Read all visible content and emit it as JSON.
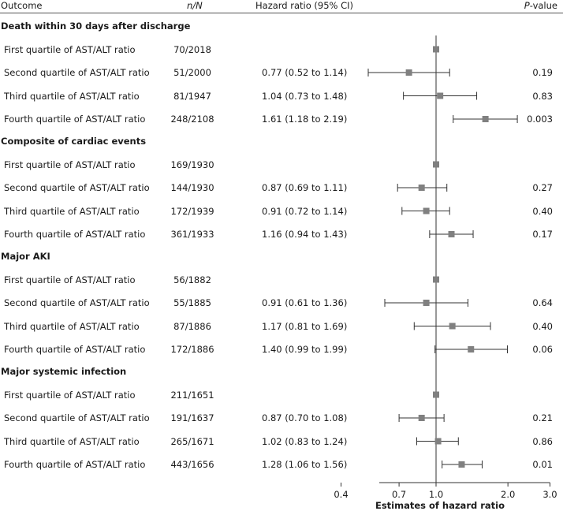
{
  "header": {
    "outcome": "Outcome",
    "nn": "n/N",
    "hr": "Hazard ratio (95% CI)",
    "p_italic": "P",
    "p_rest": "-value"
  },
  "groups": [
    {
      "title": "Death within 30 days after discharge",
      "rows": [
        {
          "label": "First quartile of AST/ALT ratio",
          "nn": "70/2018",
          "hr_text": "",
          "p": "",
          "est": 1.0,
          "lo": null,
          "hi": null
        },
        {
          "label": "Second quartile of AST/ALT ratio",
          "nn": "51/2000",
          "hr_text": "0.77 (0.52 to 1.14)",
          "p": "0.19",
          "est": 0.77,
          "lo": 0.52,
          "hi": 1.14
        },
        {
          "label": "Third quartile of AST/ALT ratio",
          "nn": "81/1947",
          "hr_text": "1.04 (0.73 to 1.48)",
          "p": "0.83",
          "est": 1.04,
          "lo": 0.73,
          "hi": 1.48
        },
        {
          "label": "Fourth quartile of AST/ALT ratio",
          "nn": "248/2108",
          "hr_text": "1.61 (1.18 to 2.19)",
          "p": "0.003",
          "est": 1.61,
          "lo": 1.18,
          "hi": 2.19
        }
      ]
    },
    {
      "title": "Composite of cardiac events",
      "rows": [
        {
          "label": "First quartile of AST/ALT ratio",
          "nn": "169/1930",
          "hr_text": "",
          "p": "",
          "est": 1.0,
          "lo": null,
          "hi": null
        },
        {
          "label": "Second quartile of AST/ALT ratio",
          "nn": "144/1930",
          "hr_text": "0.87 (0.69 to 1.11)",
          "p": "0.27",
          "est": 0.87,
          "lo": 0.69,
          "hi": 1.11
        },
        {
          "label": "Third quartile of AST/ALT ratio",
          "nn": "172/1939",
          "hr_text": "0.91 (0.72 to 1.14)",
          "p": "0.40",
          "est": 0.91,
          "lo": 0.72,
          "hi": 1.14
        },
        {
          "label": "Fourth quartile of AST/ALT ratio",
          "nn": "361/1933",
          "hr_text": "1.16 (0.94 to 1.43)",
          "p": "0.17",
          "est": 1.16,
          "lo": 0.94,
          "hi": 1.43
        }
      ]
    },
    {
      "title": "Major AKI",
      "rows": [
        {
          "label": "First quartile of AST/ALT ratio",
          "nn": "56/1882",
          "hr_text": "",
          "p": "",
          "est": 1.0,
          "lo": null,
          "hi": null
        },
        {
          "label": "Second quartile of AST/ALT ratio",
          "nn": "55/1885",
          "hr_text": "0.91 (0.61 to 1.36)",
          "p": "0.64",
          "est": 0.91,
          "lo": 0.61,
          "hi": 1.36
        },
        {
          "label": "Third quartile of AST/ALT ratio",
          "nn": "87/1886",
          "hr_text": "1.17 (0.81 to 1.69)",
          "p": "0.40",
          "est": 1.17,
          "lo": 0.81,
          "hi": 1.69
        },
        {
          "label": "Fourth quartile of AST/ALT ratio",
          "nn": "172/1886",
          "hr_text": "1.40 (0.99 to 1.99)",
          "p": "0.06",
          "est": 1.4,
          "lo": 0.99,
          "hi": 1.99
        }
      ]
    },
    {
      "title": "Major systemic infection",
      "rows": [
        {
          "label": "First quartile of AST/ALT ratio",
          "nn": "211/1651",
          "hr_text": "",
          "p": "",
          "est": 1.0,
          "lo": null,
          "hi": null
        },
        {
          "label": "Second quartile of AST/ALT ratio",
          "nn": "191/1637",
          "hr_text": "0.87 (0.70 to 1.08)",
          "p": "0.21",
          "est": 0.87,
          "lo": 0.7,
          "hi": 1.08
        },
        {
          "label": "Third quartile of AST/ALT ratio",
          "nn": "265/1671",
          "hr_text": "1.02 (0.83 to 1.24)",
          "p": "0.86",
          "est": 1.02,
          "lo": 0.83,
          "hi": 1.24
        },
        {
          "label": "Fourth quartile of AST/ALT ratio",
          "nn": "443/1656",
          "hr_text": "1.28 (1.06 to 1.56)",
          "p": "0.01",
          "est": 1.28,
          "lo": 1.06,
          "hi": 1.56
        }
      ]
    }
  ],
  "chart_data": {
    "type": "forest",
    "scale": "log",
    "reference_line": 1.0,
    "xlim": [
      0.4,
      3.0
    ],
    "xticks": [
      0.4,
      0.7,
      1.0,
      2.0,
      3.0
    ],
    "xtick_labels": [
      "0.4",
      "0.7",
      "1.0",
      "2.0",
      "3.0"
    ],
    "xlabel": "Estimates of hazard ratio",
    "grid": false,
    "marker_color": "#808080",
    "line_color": "#333333"
  }
}
